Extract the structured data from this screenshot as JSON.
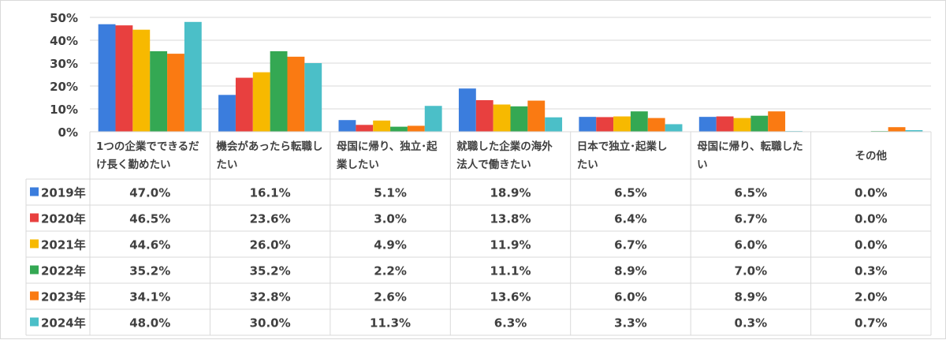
{
  "chart_data": {
    "type": "bar",
    "ylim": [
      0,
      50
    ],
    "ytick_step": 10,
    "ytick_format": "percent",
    "grid": true,
    "legend": "table-left",
    "categories": [
      [
        "1つの企業でできるだ",
        "け長く勤めたい"
      ],
      [
        "機会があったら転職し",
        "たい"
      ],
      [
        "母国に帰り、独立･起",
        "業したい"
      ],
      [
        "就職した企業の海外",
        "法人で働きたい"
      ],
      [
        "日本で独立･起業し",
        "たい"
      ],
      [
        "母国に帰り、転職した",
        "い"
      ],
      [
        "その他"
      ]
    ],
    "series": [
      {
        "name": "2019年",
        "color": "#3b7ddd",
        "values": [
          47.0,
          16.1,
          5.1,
          18.9,
          6.5,
          6.5,
          0.0
        ],
        "labels": [
          "47.0%",
          "16.1%",
          "5.1%",
          "18.9%",
          "6.5%",
          "6.5%",
          "0.0%"
        ]
      },
      {
        "name": "2020年",
        "color": "#e8403f",
        "values": [
          46.5,
          23.6,
          3.0,
          13.8,
          6.4,
          6.7,
          0.0
        ],
        "labels": [
          "46.5%",
          "23.6%",
          "3.0%",
          "13.8%",
          "6.4%",
          "6.7%",
          "0.0%"
        ]
      },
      {
        "name": "2021年",
        "color": "#f7b900",
        "values": [
          44.6,
          26.0,
          4.9,
          11.9,
          6.7,
          6.0,
          0.0
        ],
        "labels": [
          "44.6%",
          "26.0%",
          "4.9%",
          "11.9%",
          "6.7%",
          "6.0%",
          "0.0%"
        ]
      },
      {
        "name": "2022年",
        "color": "#34a853",
        "values": [
          35.2,
          35.2,
          2.2,
          11.1,
          8.9,
          7.0,
          0.3
        ],
        "labels": [
          "35.2%",
          "35.2%",
          "2.2%",
          "11.1%",
          "8.9%",
          "7.0%",
          "0.3%"
        ]
      },
      {
        "name": "2023年",
        "color": "#fa7a12",
        "values": [
          34.1,
          32.8,
          2.6,
          13.6,
          6.0,
          8.9,
          2.0
        ],
        "labels": [
          "34.1%",
          "32.8%",
          "2.6%",
          "13.6%",
          "6.0%",
          "8.9%",
          "2.0%"
        ]
      },
      {
        "name": "2024年",
        "color": "#4bbfc8",
        "values": [
          48.0,
          30.0,
          11.3,
          6.3,
          3.3,
          0.3,
          0.7
        ],
        "labels": [
          "48.0%",
          "30.0%",
          "11.3%",
          "6.3%",
          "3.3%",
          "0.3%",
          "0.7%"
        ]
      }
    ],
    "colors": {
      "grid": "#d9d9d9",
      "text": "#404040",
      "table_border": "#d9d9d9"
    }
  }
}
